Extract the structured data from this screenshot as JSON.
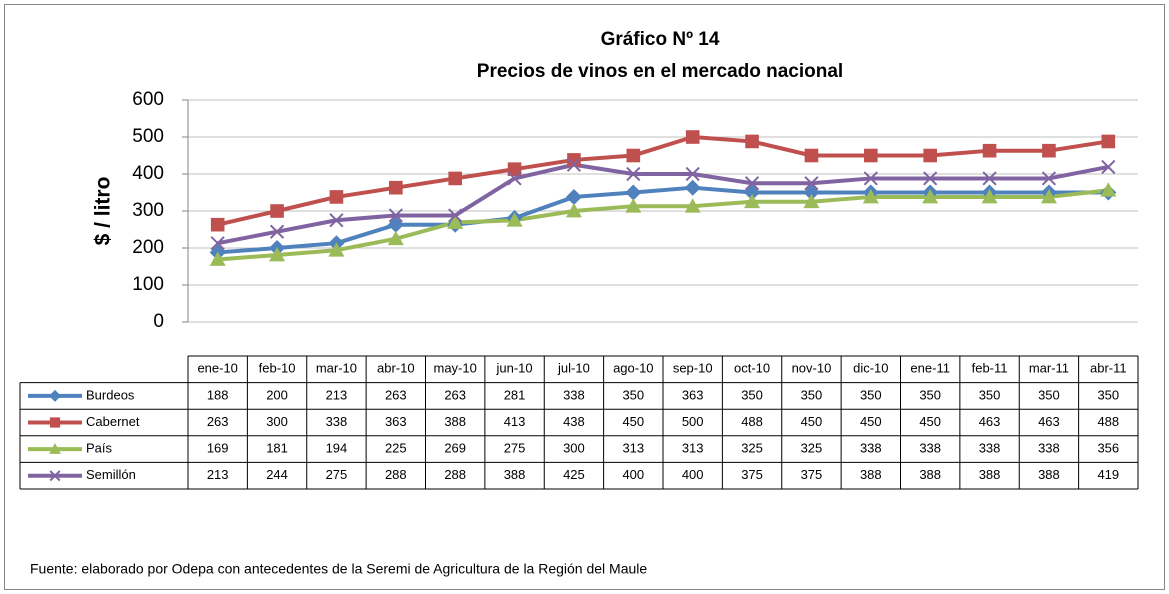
{
  "chart_data": {
    "type": "line",
    "title": "Gráfico Nº 14",
    "subtitle": "Precios de vinos en el mercado nacional",
    "y_label": "$ / litro",
    "categories": [
      "ene-10",
      "feb-10",
      "mar-10",
      "abr-10",
      "may-10",
      "jun-10",
      "jul-10",
      "ago-10",
      "sep-10",
      "oct-10",
      "nov-10",
      "dic-10",
      "ene-11",
      "feb-11",
      "mar-11",
      "abr-11"
    ],
    "series": [
      {
        "name": "Burdeos",
        "color": "#4f81bd",
        "marker": "diamond",
        "values": [
          188,
          200,
          213,
          263,
          263,
          281,
          338,
          350,
          363,
          350,
          350,
          350,
          350,
          350,
          350,
          350
        ]
      },
      {
        "name": "Cabernet",
        "color": "#c0504d",
        "marker": "square",
        "values": [
          263,
          300,
          338,
          363,
          388,
          413,
          438,
          450,
          500,
          488,
          450,
          450,
          450,
          463,
          463,
          488
        ]
      },
      {
        "name": "País",
        "color": "#9bbb59",
        "marker": "triangle",
        "values": [
          169,
          181,
          194,
          225,
          269,
          275,
          300,
          313,
          313,
          325,
          325,
          338,
          338,
          338,
          338,
          356
        ]
      },
      {
        "name": "Semillón",
        "color": "#8064a2",
        "marker": "x",
        "values": [
          213,
          244,
          275,
          288,
          288,
          388,
          425,
          400,
          400,
          375,
          375,
          388,
          388,
          388,
          388,
          419
        ]
      }
    ],
    "ylim": [
      0,
      600
    ],
    "yticks": [
      0,
      100,
      200,
      300,
      400,
      500,
      600
    ],
    "grid": true,
    "source": "Fuente: elaborado por Odepa con antecedentes de la Seremi de Agricultura de la Región del Maule"
  }
}
